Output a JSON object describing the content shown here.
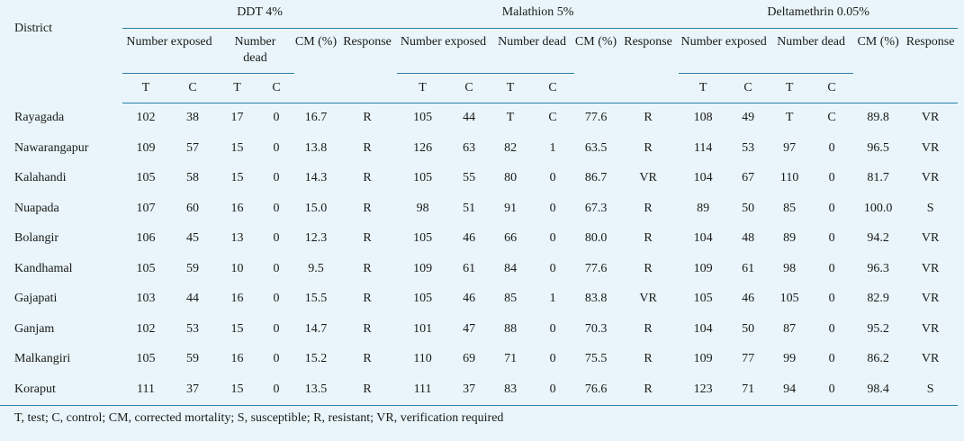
{
  "headers": {
    "district": "District",
    "groups": [
      "DDT 4%",
      "Malathion 5%",
      "Deltamethrin 0.05%"
    ],
    "number_exposed": "Number exposed",
    "number_dead": "Number dead",
    "cm": "CM (%)",
    "response": "Response",
    "t": "T",
    "c": "C"
  },
  "rows": [
    {
      "district": "Rayagada",
      "ddt": [
        "102",
        "38",
        "17",
        "0",
        "16.7",
        "R"
      ],
      "mal": [
        "105",
        "44",
        "T",
        "C",
        "77.6",
        "R"
      ],
      "del": [
        "108",
        "49",
        "T",
        "C",
        "89.8",
        "VR"
      ]
    },
    {
      "district": "Nawarangapur",
      "ddt": [
        "109",
        "57",
        "15",
        "0",
        "13.8",
        "R"
      ],
      "mal": [
        "126",
        "63",
        "82",
        "1",
        "63.5",
        "R"
      ],
      "del": [
        "114",
        "53",
        "97",
        "0",
        "96.5",
        "VR"
      ]
    },
    {
      "district": "Kalahandi",
      "ddt": [
        "105",
        "58",
        "15",
        "0",
        "14.3",
        "R"
      ],
      "mal": [
        "105",
        "55",
        "80",
        "0",
        "86.7",
        "VR"
      ],
      "del": [
        "104",
        "67",
        "110",
        "0",
        "81.7",
        "VR"
      ]
    },
    {
      "district": "Nuapada",
      "ddt": [
        "107",
        "60",
        "16",
        "0",
        "15.0",
        "R"
      ],
      "mal": [
        "98",
        "51",
        "91",
        "0",
        "67.3",
        "R"
      ],
      "del": [
        "89",
        "50",
        "85",
        "0",
        "100.0",
        "S"
      ]
    },
    {
      "district": "Bolangir",
      "ddt": [
        "106",
        "45",
        "13",
        "0",
        "12.3",
        "R"
      ],
      "mal": [
        "105",
        "46",
        "66",
        "0",
        "80.0",
        "R"
      ],
      "del": [
        "104",
        "48",
        "89",
        "0",
        "94.2",
        "VR"
      ]
    },
    {
      "district": "Kandhamal",
      "ddt": [
        "105",
        "59",
        "10",
        "0",
        "9.5",
        "R"
      ],
      "mal": [
        "109",
        "61",
        "84",
        "0",
        "77.6",
        "R"
      ],
      "del": [
        "109",
        "61",
        "98",
        "0",
        "96.3",
        "VR"
      ]
    },
    {
      "district": "Gajapati",
      "ddt": [
        "103",
        "44",
        "16",
        "0",
        "15.5",
        "R"
      ],
      "mal": [
        "105",
        "46",
        "85",
        "1",
        "83.8",
        "VR"
      ],
      "del": [
        "105",
        "46",
        "105",
        "0",
        "82.9",
        "VR"
      ]
    },
    {
      "district": "Ganjam",
      "ddt": [
        "102",
        "53",
        "15",
        "0",
        "14.7",
        "R"
      ],
      "mal": [
        "101",
        "47",
        "88",
        "0",
        "70.3",
        "R"
      ],
      "del": [
        "104",
        "50",
        "87",
        "0",
        "95.2",
        "VR"
      ]
    },
    {
      "district": "Malkangiri",
      "ddt": [
        "105",
        "59",
        "16",
        "0",
        "15.2",
        "R"
      ],
      "mal": [
        "110",
        "69",
        "71",
        "0",
        "75.5",
        "R"
      ],
      "del": [
        "109",
        "77",
        "99",
        "0",
        "86.2",
        "VR"
      ]
    },
    {
      "district": "Koraput",
      "ddt": [
        "111",
        "37",
        "15",
        "0",
        "13.5",
        "R"
      ],
      "mal": [
        "111",
        "37",
        "83",
        "0",
        "76.6",
        "R"
      ],
      "del": [
        "123",
        "71",
        "94",
        "0",
        "98.4",
        "S"
      ]
    }
  ],
  "footnote": "T, test; C, control; CM, corrected mortality; S, susceptible; R, resistant; VR, verification required"
}
